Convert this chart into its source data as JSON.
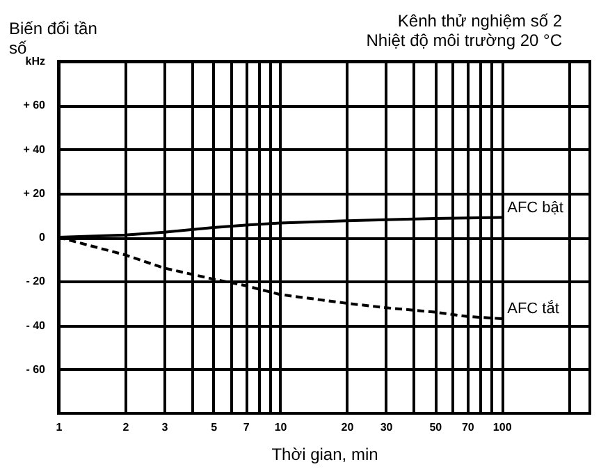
{
  "chart_data": {
    "type": "line",
    "title": "Kênh thử nghiệm số 2",
    "subtitle": "Nhiệt độ môi trường 20 °C",
    "ylabel": "Biến đổi tần số",
    "xlabel": "Thời gian, min",
    "x": [
      1,
      2,
      3,
      5,
      7,
      10,
      20,
      30,
      50,
      70,
      100
    ],
    "series": [
      {
        "name": "AFC bật",
        "color": "#000000",
        "line_style": "solid",
        "values": [
          0,
          1,
          2.3,
          4.4,
          5.5,
          6.5,
          7.5,
          8,
          8.5,
          8.8,
          9
        ]
      },
      {
        "name": "AFC tắt",
        "color": "#000000",
        "line_style": "dashed",
        "values": [
          0,
          -8,
          -14,
          -19,
          -22,
          -26,
          -30,
          -32,
          -34,
          -36,
          -37
        ]
      }
    ],
    "log": "x",
    "xlim": [
      1,
      250
    ],
    "xticks": [
      1,
      2,
      3,
      {
        "value": 4,
        "label": null
      },
      5,
      {
        "value": 6,
        "label": null
      },
      7,
      {
        "value": 8,
        "label": null
      },
      {
        "value": 9,
        "label": null
      },
      10,
      20,
      30,
      {
        "value": 40,
        "label": null
      },
      50,
      {
        "value": 60,
        "label": null
      },
      70,
      {
        "value": 80,
        "label": null
      },
      {
        "value": 90,
        "label": null
      },
      100,
      {
        "value": 200,
        "label": null
      }
    ],
    "ylim": [
      -80,
      80
    ],
    "yticks": [
      {
        "value": 80,
        "label": "kHz"
      },
      {
        "value": 60,
        "label": "+ 60"
      },
      {
        "value": 40,
        "label": "+ 40"
      },
      {
        "value": 20,
        "label": "+ 20"
      },
      0,
      {
        "value": -20,
        "label": "- 20"
      },
      {
        "value": -40,
        "label": "- 40"
      },
      {
        "value": -60,
        "label": "- 60"
      }
    ],
    "grid": true,
    "legend": false,
    "marker": "none"
  }
}
